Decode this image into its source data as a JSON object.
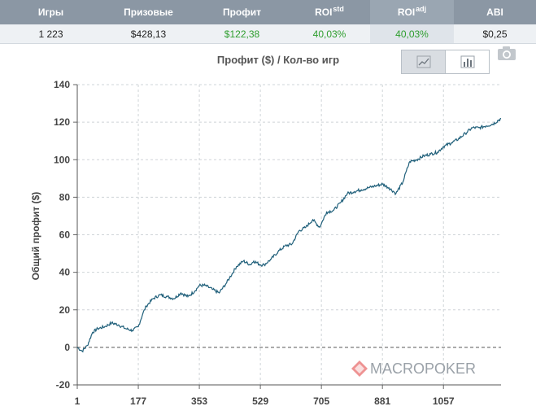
{
  "stats": {
    "headers": [
      {
        "label": "Игры",
        "sup": ""
      },
      {
        "label": "Призовые",
        "sup": ""
      },
      {
        "label": "Профит",
        "sup": ""
      },
      {
        "label": "ROI",
        "sup": "std"
      },
      {
        "label": "ROI",
        "sup": "adj"
      },
      {
        "label": "ABI",
        "sup": ""
      }
    ],
    "values": [
      "1 223",
      "$428,13",
      "$122,38",
      "40,03%",
      "40,03%",
      "$0,25"
    ]
  },
  "toolbar": {
    "line_chart_icon": "line-chart-icon",
    "bar_chart_icon": "bar-chart-icon",
    "camera_icon": "camera-icon"
  },
  "watermark": "MACROPOKER",
  "colors": {
    "line": "#1f5f7a",
    "header_bg": "#8b97a4",
    "positive": "#2e9e2e"
  },
  "chart_data": {
    "type": "line",
    "title": "Профит ($) / Кол-во игр",
    "xlabel": "",
    "ylabel": "Общий профит ($)",
    "xlim": [
      1,
      1223
    ],
    "ylim": [
      -20,
      140
    ],
    "xticks": [
      1,
      177,
      353,
      529,
      705,
      881,
      1057
    ],
    "yticks": [
      -20,
      0,
      20,
      40,
      60,
      80,
      100,
      120,
      140
    ],
    "grid": true,
    "series": [
      {
        "x": [
          1,
          15,
          30,
          45,
          60,
          80,
          100,
          120,
          140,
          160,
          177,
          190,
          200,
          220,
          240,
          260,
          280,
          300,
          320,
          340,
          353,
          370,
          390,
          410,
          430,
          440,
          460,
          480,
          500,
          510,
          529,
          540,
          560,
          580,
          600,
          620,
          640,
          660,
          680,
          700,
          705,
          720,
          740,
          760,
          780,
          800,
          820,
          840,
          860,
          881,
          900,
          920,
          940,
          950,
          960,
          980,
          1000,
          1020,
          1040,
          1057,
          1080,
          1100,
          1120,
          1140,
          1160,
          1180,
          1200,
          1223
        ],
        "y": [
          0,
          -2,
          1,
          8,
          10,
          11,
          13,
          12,
          10,
          9,
          11,
          18,
          22,
          26,
          28,
          27,
          26,
          29,
          27,
          30,
          33,
          33,
          31,
          29,
          34,
          37,
          43,
          46,
          44,
          46,
          44,
          44,
          47,
          51,
          54,
          55,
          62,
          64,
          68,
          64,
          66,
          72,
          73,
          77,
          82,
          83,
          84,
          85,
          86,
          87,
          85,
          82,
          88,
          94,
          99,
          100,
          102,
          103,
          104,
          107,
          109,
          111,
          114,
          117,
          117,
          118,
          119,
          122
        ]
      }
    ]
  }
}
